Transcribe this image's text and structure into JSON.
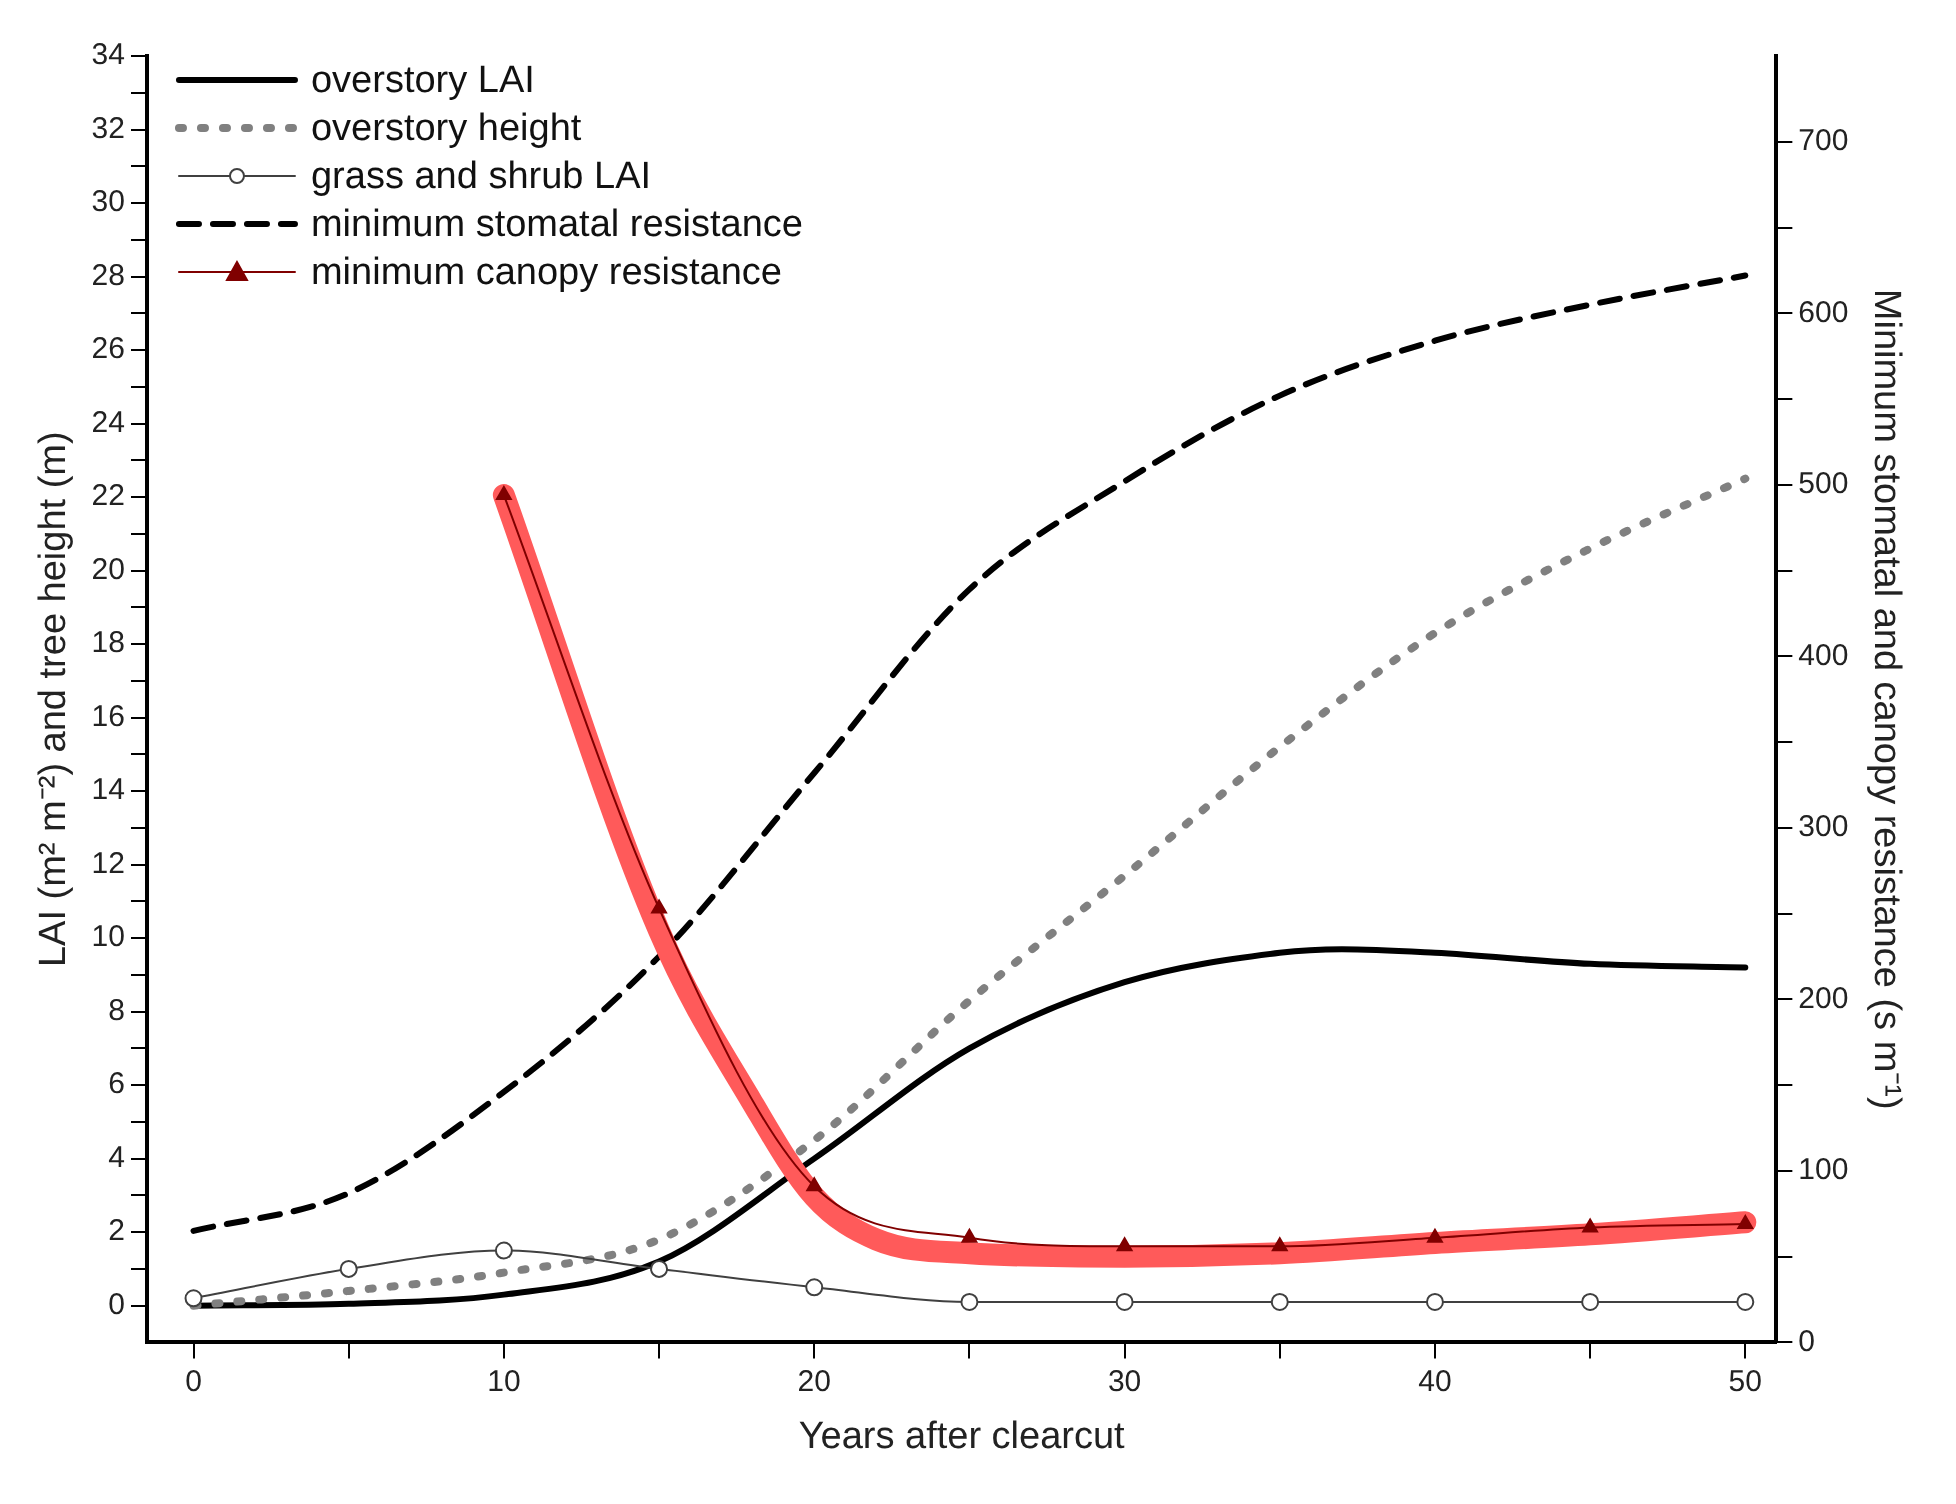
{
  "chart_data": {
    "type": "line",
    "xlabel": "Years after clearcut",
    "ylabel": "LAI (m² m⁻²) and tree height (m)",
    "y2label": "Minimum stomatal and canopy resistance (s m⁻¹)",
    "xlim": [
      -1.5,
      51
    ],
    "xticks": [
      0,
      {
        "value": 5,
        "label": null
      },
      10,
      {
        "value": 15,
        "label": null
      },
      20,
      {
        "value": 25,
        "label": null
      },
      30,
      {
        "value": 35,
        "label": null
      },
      40,
      {
        "value": 45,
        "label": null
      },
      50
    ],
    "ylim": [
      -1,
      34
    ],
    "yticks": [
      0,
      {
        "value": 1,
        "label": null
      },
      2,
      {
        "value": 3,
        "label": null
      },
      4,
      {
        "value": 5,
        "label": null
      },
      6,
      {
        "value": 7,
        "label": null
      },
      8,
      {
        "value": 9,
        "label": null
      },
      10,
      {
        "value": 11,
        "label": null
      },
      12,
      {
        "value": 13,
        "label": null
      },
      14,
      {
        "value": 15,
        "label": null
      },
      16,
      {
        "value": 17,
        "label": null
      },
      18,
      {
        "value": 19,
        "label": null
      },
      20,
      {
        "value": 21,
        "label": null
      },
      22,
      {
        "value": 23,
        "label": null
      },
      24,
      {
        "value": 25,
        "label": null
      },
      26,
      {
        "value": 27,
        "label": null
      },
      28,
      {
        "value": 29,
        "label": null
      },
      30,
      {
        "value": 31,
        "label": null
      },
      32,
      {
        "value": 33,
        "label": null
      },
      34
    ],
    "y2lim": [
      0,
      750
    ],
    "y2ticks": [
      0,
      {
        "value": 50,
        "label": null
      },
      100,
      {
        "value": 150,
        "label": null
      },
      200,
      {
        "value": 250,
        "label": null
      },
      300,
      {
        "value": 350,
        "label": null
      },
      400,
      {
        "value": 450,
        "label": null
      },
      500,
      {
        "value": 550,
        "label": null
      },
      600,
      {
        "value": 650,
        "label": null
      },
      700
    ],
    "grid": false,
    "legend": "top left",
    "series": [
      {
        "name": "overstory LAI",
        "color": "#000000",
        "line_style": "solid",
        "marker": "none",
        "x": [
          0,
          5,
          10,
          15,
          20,
          25,
          30,
          35,
          37,
          40,
          45,
          50
        ],
        "values": [
          0,
          0.05,
          0.3,
          1.2,
          4,
          7,
          8.8,
          9.6,
          9.7,
          9.6,
          9.3,
          9.2
        ]
      },
      {
        "name": "overstory height",
        "color": "#808080",
        "line_style": "dotted",
        "marker": "none",
        "x": [
          0,
          5,
          10,
          15,
          20,
          25,
          30,
          35,
          40,
          45,
          50
        ],
        "values": [
          0,
          0.4,
          0.9,
          1.8,
          4.5,
          8.3,
          11.7,
          15.2,
          18.3,
          20.6,
          22.5
        ]
      },
      {
        "name": "grass and shrub LAI",
        "color": "#404040",
        "line_style": "solid",
        "marker": "circle",
        "x": [
          0,
          5,
          10,
          15,
          20,
          25,
          30,
          35,
          40,
          45,
          50
        ],
        "values": [
          0.2,
          1.0,
          1.5,
          1.0,
          0.5,
          0.1,
          0.1,
          0.1,
          0.1,
          0.1,
          0.1
        ]
      },
      {
        "name": "minimum stomatal resistance",
        "color": "#000000",
        "line_style": "dashed",
        "marker": "none",
        "axis": "y2",
        "x": [
          0,
          5,
          10,
          15,
          20,
          25,
          30,
          35,
          40,
          45,
          50
        ],
        "values": [
          65,
          87,
          146,
          225,
          332,
          439,
          502,
          552,
          584,
          605,
          622
        ]
      },
      {
        "color": "#ff5a5a",
        "line_style": "solid",
        "marker": "none",
        "axis": "y2",
        "x": [
          10,
          15,
          18,
          20,
          22,
          25,
          30,
          35,
          40,
          45,
          50
        ],
        "values": [
          494,
          240,
          140,
          85,
          60,
          52,
          50,
          52,
          58,
          63,
          70
        ]
      },
      {
        "name": "minimum canopy resistance",
        "color": "#800000",
        "line_style": "solid",
        "marker": "triangle",
        "axis": "y2",
        "x": [
          10,
          15,
          20,
          25,
          30,
          35,
          40,
          45,
          50
        ],
        "values": [
          494,
          253,
          91,
          61,
          56,
          56,
          61,
          67,
          69
        ]
      }
    ]
  }
}
